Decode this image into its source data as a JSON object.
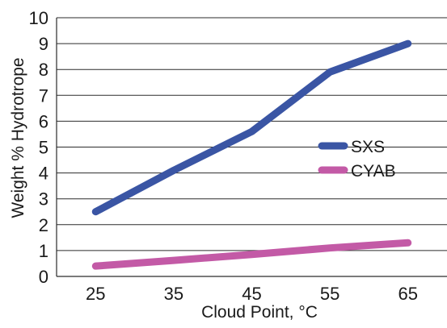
{
  "chart_data": {
    "type": "line",
    "title": "",
    "xlabel": "Cloud Point, °C",
    "ylabel": "Weight % Hydrotrope",
    "x": [
      25,
      35,
      45,
      55,
      65
    ],
    "x_tick_labels": [
      "25",
      "35",
      "45",
      "55",
      "65"
    ],
    "y_tick_labels": [
      "0",
      "1",
      "2",
      "3",
      "4",
      "5",
      "6",
      "7",
      "8",
      "9",
      "10"
    ],
    "xlim": [
      20,
      70
    ],
    "ylim": [
      0,
      10
    ],
    "grid": "horizontal",
    "legend_position": "right",
    "series": [
      {
        "name": "SXS",
        "color": "#3a55a4",
        "values": [
          2.5,
          4.1,
          5.6,
          7.9,
          9.0
        ]
      },
      {
        "name": "CYAB",
        "color": "#c35aa6",
        "values": [
          0.4,
          0.62,
          0.85,
          1.1,
          1.3
        ]
      }
    ]
  }
}
